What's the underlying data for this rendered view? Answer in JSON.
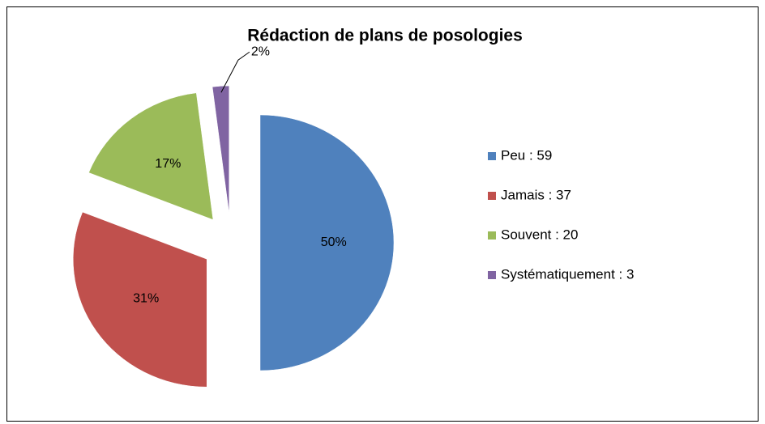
{
  "chart_data": {
    "type": "pie",
    "title": "Rédaction de plans de posologies",
    "categories": [
      "Peu : 59",
      "Jamais : 37",
      "Souvent : 20",
      "Systématiquement : 3"
    ],
    "values": [
      50,
      31,
      17,
      2
    ],
    "value_labels": [
      "50%",
      "31%",
      "17%",
      "2%"
    ],
    "colors": [
      "#4f81bd",
      "#c0504d",
      "#9bbb59",
      "#8064a2"
    ],
    "legend": "right"
  }
}
